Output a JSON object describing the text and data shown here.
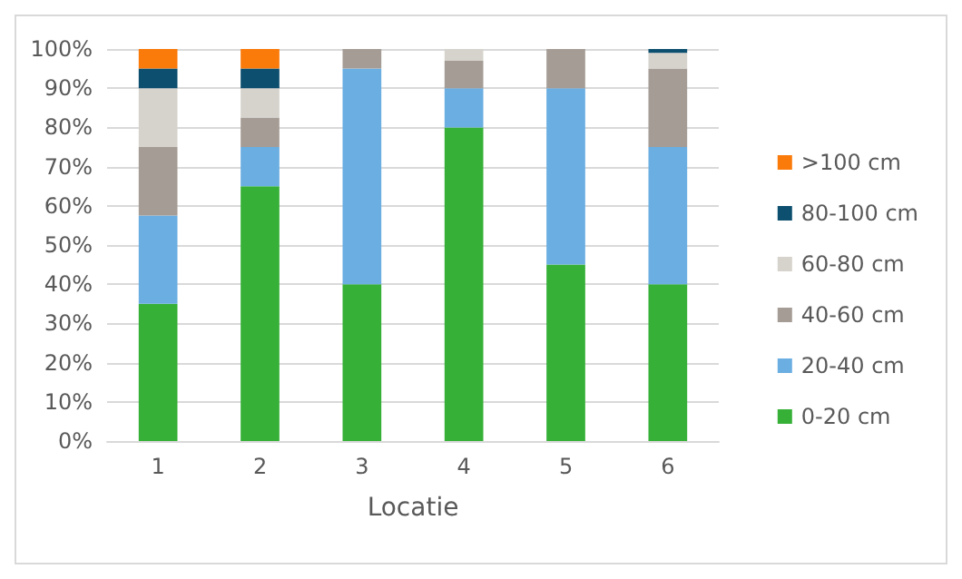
{
  "chart_data": {
    "type": "bar",
    "stacked": true,
    "xlabel": "Locatie",
    "categories": [
      "1",
      "2",
      "3",
      "4",
      "5",
      "6"
    ],
    "series": [
      {
        "name": "0-20 cm",
        "color": "#36b037",
        "values": [
          35,
          65,
          40,
          80,
          45,
          40
        ]
      },
      {
        "name": "20-40 cm",
        "color": "#6aaee2",
        "values": [
          22.5,
          10,
          55,
          10,
          45,
          35
        ]
      },
      {
        "name": "40-60 cm",
        "color": "#a59c95",
        "values": [
          17.5,
          7.5,
          5,
          7,
          10,
          20
        ]
      },
      {
        "name": "60-80 cm",
        "color": "#d6d3cc",
        "values": [
          15,
          7.5,
          0,
          3,
          0,
          4
        ]
      },
      {
        "name": "80-100 cm",
        "color": "#0d4f6f",
        "values": [
          5,
          5,
          0,
          0,
          0,
          1
        ]
      },
      {
        "name": ">100 cm",
        "color": "#fa7a0a",
        "values": [
          5,
          5,
          0,
          0,
          0,
          0
        ]
      }
    ],
    "ylim": [
      0,
      100
    ],
    "yticks": [
      {
        "value": 0,
        "label": "0%"
      },
      {
        "value": 10,
        "label": "10%"
      },
      {
        "value": 20,
        "label": "20%"
      },
      {
        "value": 30,
        "label": "30%"
      },
      {
        "value": 40,
        "label": "40%"
      },
      {
        "value": 50,
        "label": "50%"
      },
      {
        "value": 60,
        "label": "60%"
      },
      {
        "value": 70,
        "label": "70%"
      },
      {
        "value": 80,
        "label": "80%"
      },
      {
        "value": 90,
        "label": "90%"
      },
      {
        "value": 100,
        "label": "100%"
      }
    ],
    "grid": "y",
    "legend": "right"
  }
}
